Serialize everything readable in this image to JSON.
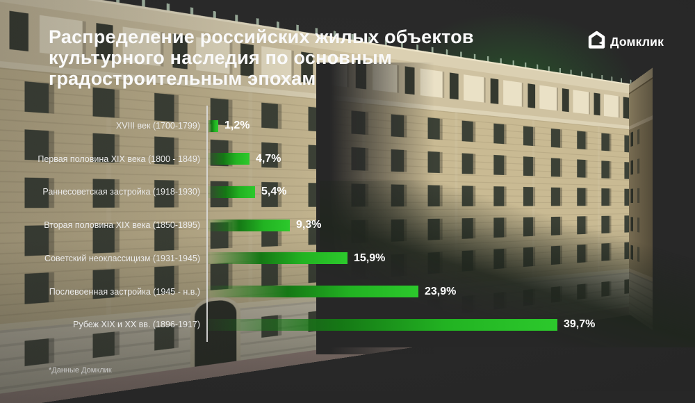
{
  "header": {
    "title_lines": [
      "Распределение российских жилых объектов",
      "культурного наследия по основным",
      "градостроительным эпохам"
    ]
  },
  "logo": {
    "text": "Домклик",
    "icon": "domclick-house-icon"
  },
  "chart_data": {
    "type": "bar",
    "orientation": "horizontal",
    "title": "Распределение российских жилых объектов культурного наследия по основным градостроительным эпохам",
    "unit": "%",
    "xlim": [
      0,
      42
    ],
    "grid": false,
    "categories": [
      "XVIII век (1700-1799)",
      "Первая половина XIX века (1800 - 1849)",
      "Раннесоветская застройка (1918-1930)",
      "Вторая половина XIX века (1850-1895)",
      "Советский неоклассицизм (1931-1945)",
      "Послевоенная застройка (1945 - н.в.)",
      "Рубеж XIX и XX вв. (1896-1917)"
    ],
    "values": [
      1.2,
      4.7,
      5.4,
      9.3,
      15.9,
      23.9,
      39.7
    ],
    "value_labels": [
      "1,2%",
      "4,7%",
      "5,4%",
      "9,3%",
      "15,9%",
      "23,9%",
      "39,7%"
    ],
    "bar_color_bright": "#2cc92c",
    "bar_color_dark": "#157815",
    "axis_color": "#d9d9d9"
  },
  "footnote": "*Данные Домклик",
  "illustration": {
    "name": "stalinist-apartment-building",
    "glow_color": "#28802e"
  }
}
